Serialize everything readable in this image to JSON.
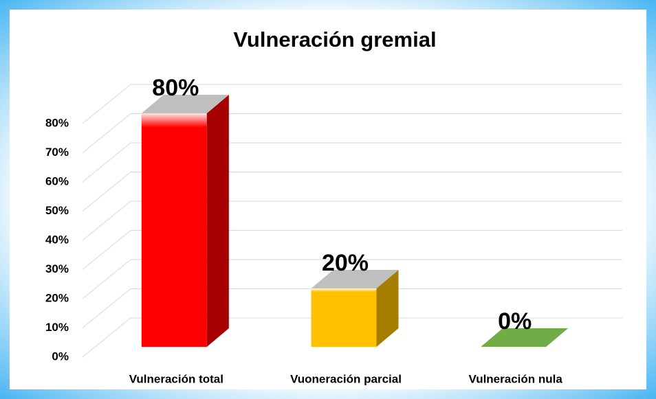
{
  "chart_data": {
    "type": "bar3d",
    "title": "Vulneración gremial",
    "categories": [
      "Vulneración total",
      "Vuoneración parcial",
      "Vulneración nula"
    ],
    "values": [
      80,
      20,
      0
    ],
    "value_labels": [
      "80%",
      "20%",
      "0%"
    ],
    "colors": [
      "#ff0000",
      "#ffc000",
      "#70ad47"
    ],
    "ylim": [
      0,
      80
    ],
    "yticks": [
      {
        "value": 0,
        "label": "0%"
      },
      {
        "value": 10,
        "label": "10%"
      },
      {
        "value": 20,
        "label": "20%"
      },
      {
        "value": 30,
        "label": "30%"
      },
      {
        "value": 40,
        "label": "40%"
      },
      {
        "value": 50,
        "label": "50%"
      },
      {
        "value": 60,
        "label": "60%"
      },
      {
        "value": 70,
        "label": "70%"
      },
      {
        "value": 80,
        "label": "80%"
      }
    ],
    "grid": true
  }
}
